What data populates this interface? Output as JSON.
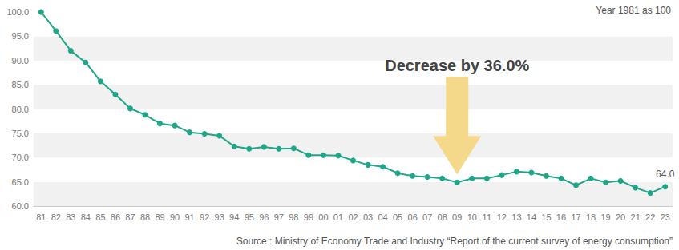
{
  "chart_data": {
    "type": "line",
    "categories": [
      "81",
      "82",
      "83",
      "84",
      "85",
      "86",
      "87",
      "88",
      "89",
      "90",
      "91",
      "92",
      "93",
      "94",
      "95",
      "96",
      "97",
      "98",
      "99",
      "00",
      "01",
      "02",
      "03",
      "04",
      "05",
      "06",
      "07",
      "08",
      "09",
      "10",
      "11",
      "12",
      "13",
      "14",
      "15",
      "16",
      "17",
      "18",
      "19",
      "20",
      "21",
      "22",
      "23"
    ],
    "values": [
      100.0,
      96.1,
      92.0,
      89.6,
      85.7,
      83.0,
      80.1,
      78.8,
      77.0,
      76.6,
      75.2,
      74.9,
      74.5,
      72.3,
      71.8,
      72.2,
      71.8,
      71.9,
      70.5,
      70.5,
      70.4,
      69.4,
      68.5,
      68.1,
      66.8,
      66.2,
      66.0,
      65.7,
      64.9,
      65.7,
      65.7,
      66.4,
      67.1,
      66.9,
      66.2,
      65.7,
      64.3,
      65.7,
      64.9,
      65.2,
      63.8,
      62.7,
      64.0
    ],
    "value_labels": [
      null,
      null,
      null,
      null,
      null,
      null,
      null,
      null,
      null,
      null,
      null,
      null,
      null,
      null,
      null,
      null,
      null,
      null,
      null,
      null,
      null,
      null,
      null,
      null,
      null,
      null,
      null,
      null,
      null,
      null,
      null,
      null,
      null,
      null,
      null,
      null,
      null,
      null,
      null,
      null,
      null,
      null,
      "64.0"
    ],
    "data_labels": true,
    "color": "#1fa587",
    "marker": "circle",
    "ylim": [
      60,
      100
    ],
    "yticks": [
      {
        "value": 60,
        "label": "60.0"
      },
      {
        "value": 65,
        "label": "65.0"
      },
      {
        "value": 70,
        "label": "70.0"
      },
      {
        "value": 75,
        "label": "75.0"
      },
      {
        "value": 80,
        "label": "80.0"
      },
      {
        "value": 85,
        "label": "85.0"
      },
      {
        "value": 90,
        "label": "90.0"
      },
      {
        "value": 95,
        "label": "95.0"
      },
      {
        "value": 100,
        "label": "100.0"
      }
    ],
    "grid": true,
    "annotations": [
      {
        "text": "Year 1981 as 100"
      },
      {
        "text": "Decrease by 36.0%",
        "x": "09"
      }
    ],
    "source": "Source : Ministry of Economy Trade and Industry “Report of the current survey of energy consumption”"
  }
}
